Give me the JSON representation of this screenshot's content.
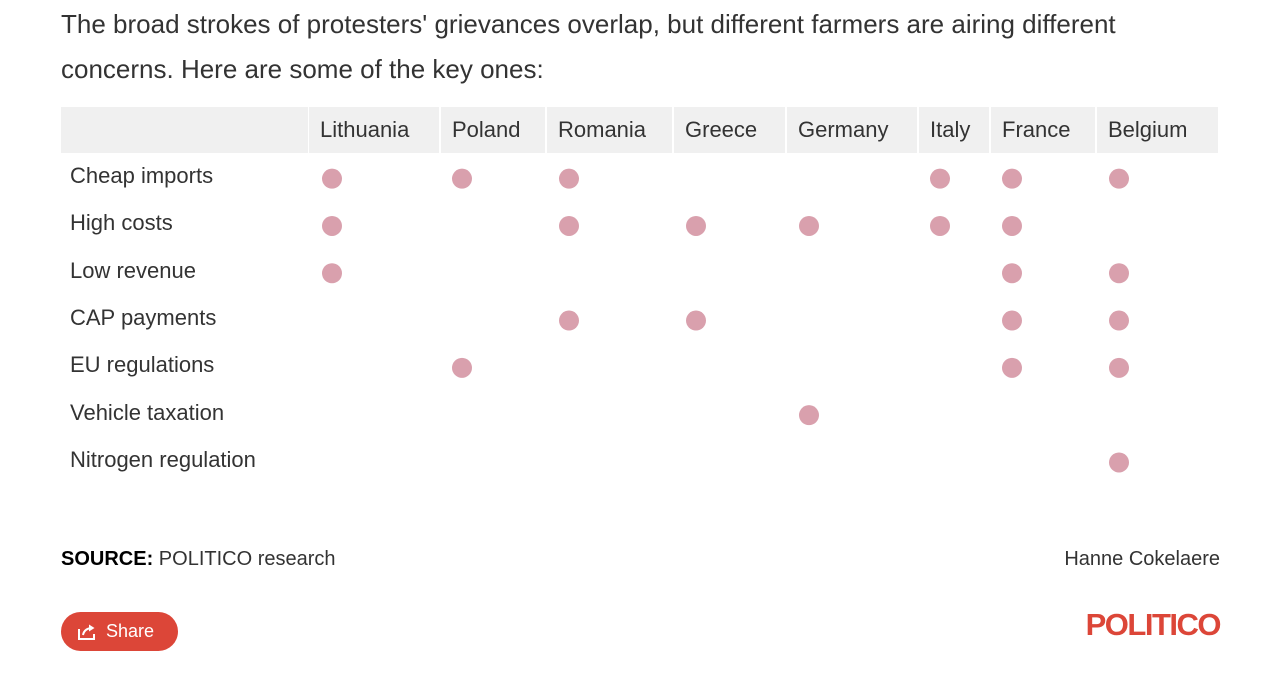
{
  "intro": "The broad strokes of protesters' grievances overlap, but different farmers are airing different concerns. Here are some of the key ones:",
  "chart_data": {
    "type": "table",
    "columns": [
      "Lithuania",
      "Poland",
      "Romania",
      "Greece",
      "Germany",
      "Italy",
      "France",
      "Belgium"
    ],
    "rows": [
      {
        "label": "Cheap imports",
        "marks": [
          true,
          true,
          true,
          false,
          false,
          true,
          true,
          true
        ]
      },
      {
        "label": "High costs",
        "marks": [
          true,
          false,
          true,
          true,
          true,
          true,
          true,
          false
        ]
      },
      {
        "label": "Low revenue",
        "marks": [
          true,
          false,
          false,
          false,
          false,
          false,
          true,
          true
        ]
      },
      {
        "label": "CAP payments",
        "marks": [
          false,
          false,
          true,
          true,
          false,
          false,
          true,
          true
        ]
      },
      {
        "label": "EU regulations",
        "marks": [
          false,
          true,
          false,
          false,
          false,
          false,
          true,
          true
        ]
      },
      {
        "label": "Vehicle taxation",
        "marks": [
          false,
          false,
          false,
          false,
          true,
          false,
          false,
          false
        ]
      },
      {
        "label": "Nitrogen regulation",
        "marks": [
          false,
          false,
          false,
          false,
          false,
          false,
          false,
          true
        ]
      }
    ],
    "dot_color": "#d9a0ad",
    "header_bg": "#f0f0f0"
  },
  "footer": {
    "source_label": "SOURCE:",
    "source_text": "POLITICO research",
    "credit": "Hanne Cokelaere",
    "share_label": "Share",
    "share_icon": "share-icon",
    "logo": "POLITICO",
    "brand_color": "#dc4638"
  }
}
